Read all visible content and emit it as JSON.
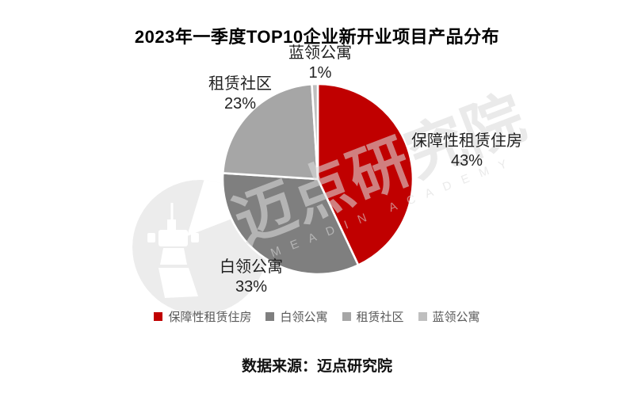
{
  "title": "2023年一季度TOP10企业新开业项目产品分布",
  "source_note": "数据来源：迈点研究院",
  "watermark": {
    "cn": "迈点研究院",
    "en": "MEADIN ACADEMY"
  },
  "colors": {
    "accent_red": "#C00000",
    "gray_dark": "#7F7F7F",
    "gray_mid": "#A6A6A6",
    "gray_light": "#BFBFBF",
    "legend_text": "#595959"
  },
  "chart_data": {
    "type": "pie",
    "title": "2023年一季度TOP10企业新开业项目产品分布",
    "start_angle_deg": 0,
    "direction": "clockwise",
    "legend_position": "bottom",
    "slices": [
      {
        "label": "保障性租赁住房",
        "value": 43,
        "pct_label": "43%",
        "color": "#C00000"
      },
      {
        "label": "白领公寓",
        "value": 33,
        "pct_label": "33%",
        "color": "#7F7F7F"
      },
      {
        "label": "租赁社区",
        "value": 23,
        "pct_label": "23%",
        "color": "#A6A6A6"
      },
      {
        "label": "蓝领公寓",
        "value": 1,
        "pct_label": "1%",
        "color": "#BFBFBF"
      }
    ]
  },
  "legend": [
    {
      "label": "保障性租赁住房",
      "color": "#C00000"
    },
    {
      "label": "白领公寓",
      "color": "#7F7F7F"
    },
    {
      "label": "租赁社区",
      "color": "#A6A6A6"
    },
    {
      "label": "蓝领公寓",
      "color": "#BFBFBF"
    }
  ]
}
